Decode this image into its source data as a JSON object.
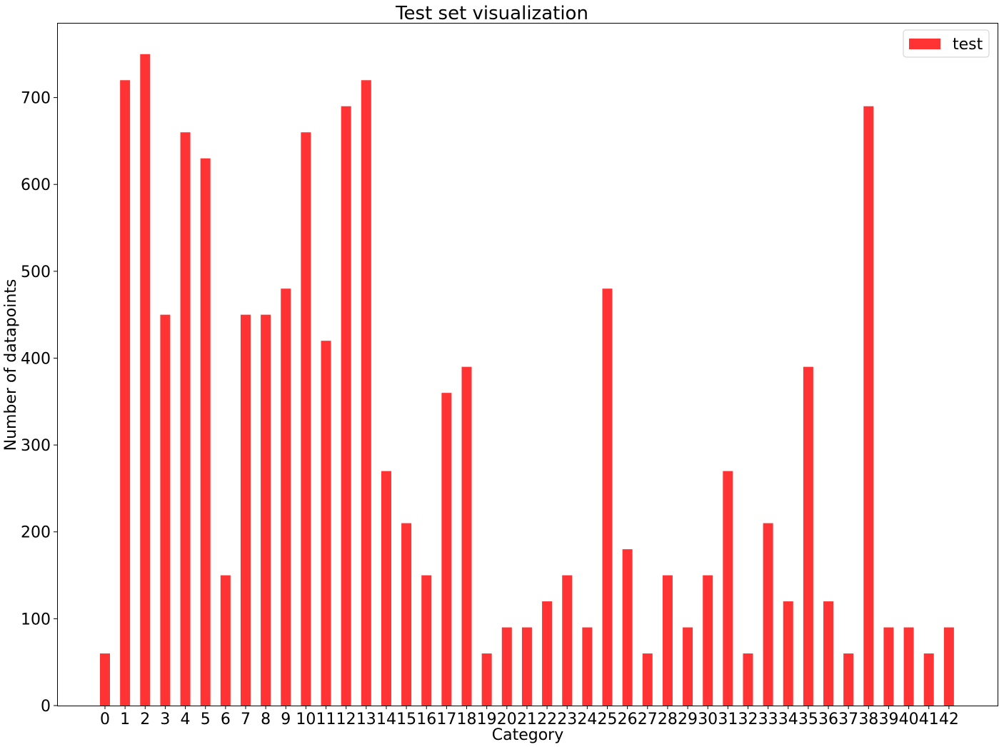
{
  "chart_data": {
    "type": "bar",
    "title": "Test set visualization",
    "xlabel": "Category",
    "ylabel": "Number of datapoints",
    "ylim": [
      0,
      786
    ],
    "yticks": [
      0,
      100,
      200,
      300,
      400,
      500,
      600,
      700
    ],
    "categories": [
      "0",
      "1",
      "2",
      "3",
      "4",
      "5",
      "6",
      "7",
      "8",
      "9",
      "10",
      "11",
      "12",
      "13",
      "14",
      "15",
      "16",
      "17",
      "18",
      "19",
      "20",
      "21",
      "22",
      "23",
      "24",
      "25",
      "26",
      "27",
      "28",
      "29",
      "30",
      "31",
      "32",
      "33",
      "34",
      "35",
      "36",
      "37",
      "38",
      "39",
      "40",
      "41",
      "42"
    ],
    "series": [
      {
        "name": "test",
        "color": "#ff3333",
        "values": [
          60,
          720,
          750,
          450,
          660,
          630,
          150,
          450,
          450,
          480,
          660,
          420,
          690,
          720,
          270,
          210,
          150,
          360,
          390,
          60,
          90,
          90,
          120,
          150,
          90,
          480,
          180,
          60,
          150,
          90,
          150,
          270,
          60,
          210,
          120,
          390,
          120,
          60,
          690,
          90,
          90,
          60,
          90
        ]
      }
    ],
    "grid": false,
    "legend_position": "top-right"
  }
}
